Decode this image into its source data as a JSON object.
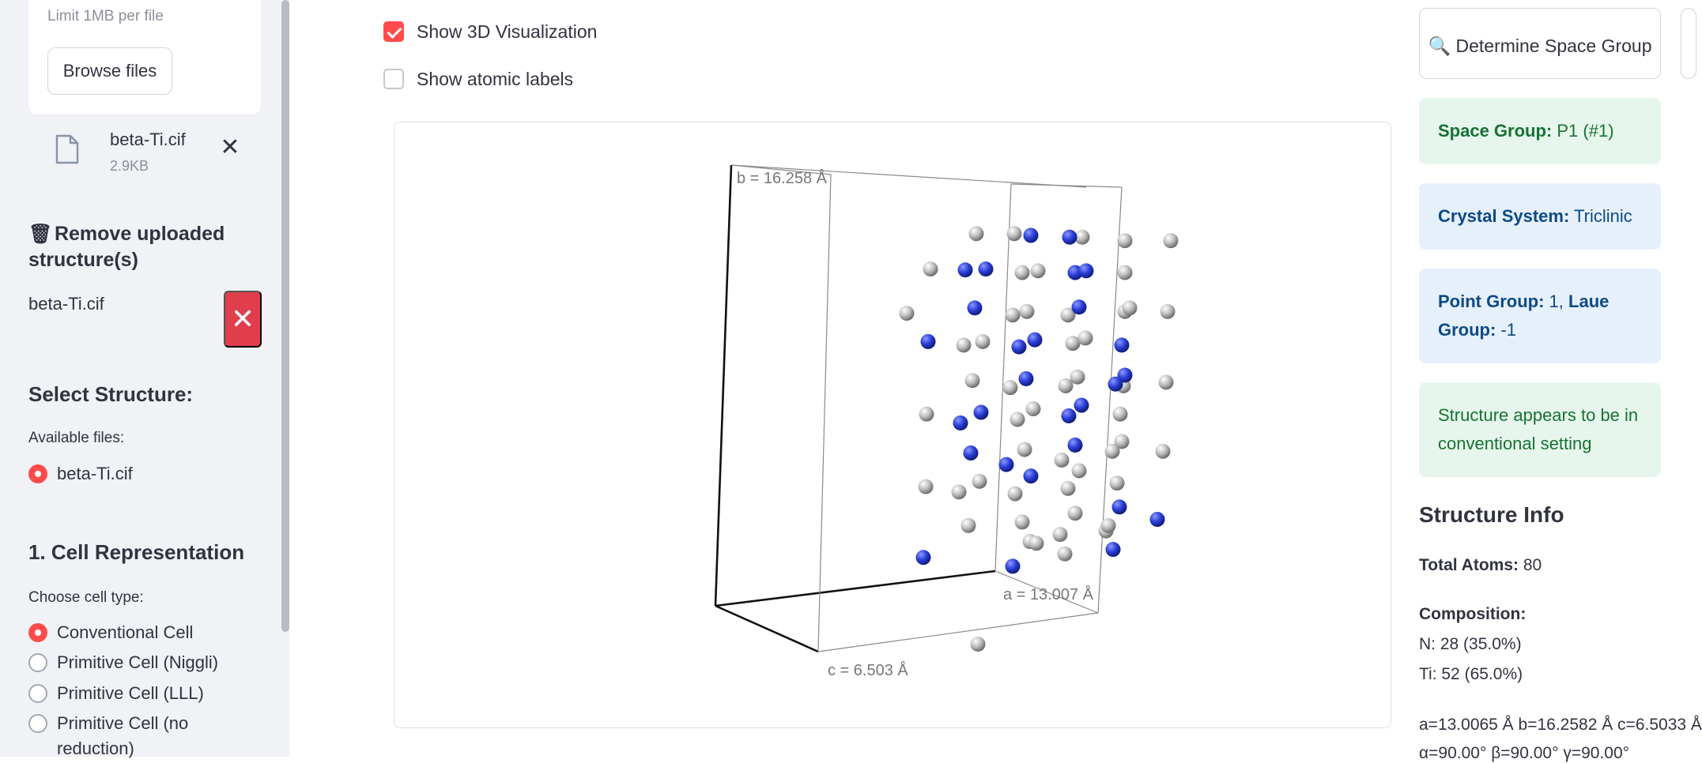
{
  "sidebar": {
    "uploader": {
      "limit_text": "Limit 1MB per file",
      "browse_label": "Browse files"
    },
    "uploaded_file": {
      "name": "beta-Ti.cif",
      "size": "2.9KB",
      "icon": "file-icon",
      "remove_icon": "close-icon"
    },
    "remove_section": {
      "icon": "wastebasket-icon",
      "title": "Remove uploaded structure(s)",
      "file": "beta-Ti.cif",
      "delete_icon": "close-icon"
    },
    "select_structure": {
      "title": "Select Structure:",
      "label": "Available files:",
      "options": [
        "beta-Ti.cif"
      ],
      "selected": 0
    },
    "cell_representation": {
      "title": "1. Cell Representation",
      "label": "Choose cell type:",
      "options": [
        "Conventional Cell",
        "Primitive Cell (Niggli)",
        "Primitive Cell (LLL)",
        "Primitive Cell (no reduction)"
      ],
      "selected": 0
    }
  },
  "main": {
    "show_3d": {
      "label": "Show 3D Visualization",
      "checked": true
    },
    "show_labels": {
      "label": "Show atomic labels",
      "checked": false
    },
    "viewer": {
      "axis_b": "b = 16.258 Å",
      "axis_a": "a = 13.007 Å",
      "axis_c": "c = 6.503 Å",
      "atom_colors": {
        "N": "#2b3ed6",
        "Ti": "#bdbdbd"
      }
    }
  },
  "right": {
    "determine_button": {
      "icon": "magnifier-icon",
      "label": "Determine Space Group"
    },
    "space_group": {
      "label": "Space Group:",
      "value": "P1 (#1)"
    },
    "crystal_system": {
      "label": "Crystal System:",
      "value": "Triclinic"
    },
    "point_group": {
      "label": "Point Group:",
      "value": "1",
      "sep": ",",
      "laue_label": "Laue Group:",
      "laue_value": "-1"
    },
    "setting_note": "Structure appears to be in conventional setting",
    "structure_info": {
      "title": "Structure Info",
      "total_atoms_label": "Total Atoms:",
      "total_atoms_value": "80",
      "composition_label": "Composition:",
      "composition": [
        "N: 28 (35.0%)",
        "Ti: 52 (65.0%)"
      ],
      "lattice_lengths": "a=13.0065 Å b=16.2582 Å c=6.5033 Å",
      "lattice_angles": "α=90.00° β=90.00° γ=90.00°"
    }
  },
  "colors": {
    "accent": "#ff4b4b",
    "delete": "#e03e4d",
    "success_bg": "#e7f6ec",
    "info_bg": "#e6f0fb"
  }
}
